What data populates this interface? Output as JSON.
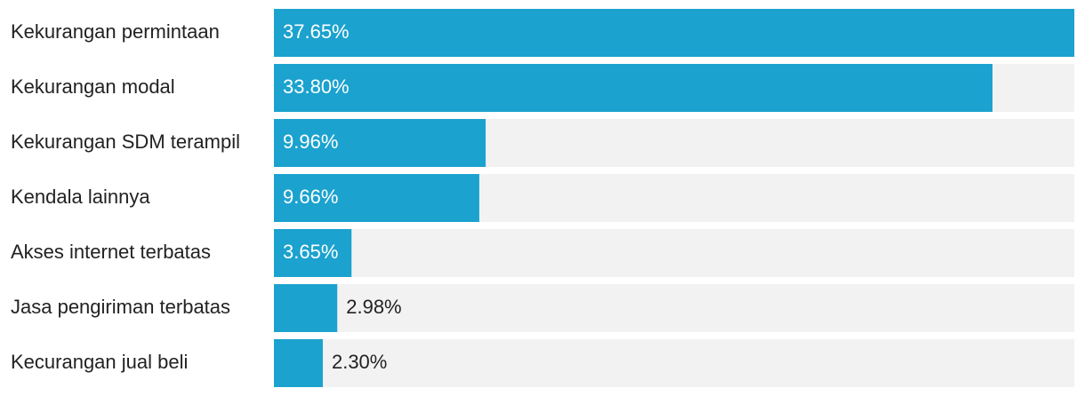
{
  "chart_data": {
    "type": "bar",
    "categories": [
      "Kekurangan permintaan",
      "Kekurangan modal",
      "Kekurangan SDM terampil",
      "Kendala lainnya",
      "Akses internet terbatas",
      "Jasa pengiriman terbatas",
      "Kecurangan jual beli"
    ],
    "values": [
      37.65,
      33.8,
      9.96,
      9.66,
      3.65,
      2.98,
      2.3
    ],
    "value_labels": [
      "37.65%",
      "33.80%",
      "9.96%",
      "9.66%",
      "3.65%",
      "2.98%",
      "2.30%"
    ],
    "color": "#1ba2ce",
    "xlim": [
      0,
      37.65
    ]
  }
}
